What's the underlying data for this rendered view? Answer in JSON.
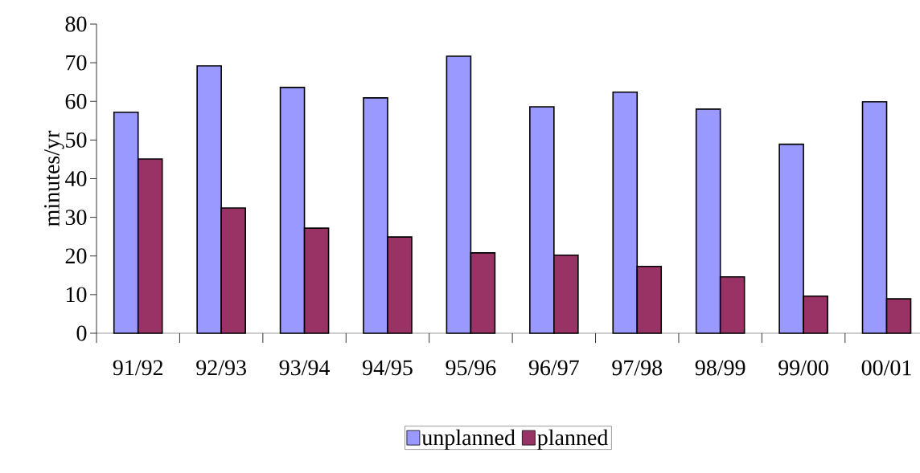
{
  "chart_data": {
    "type": "bar",
    "ylabel": "minutes/yr",
    "categories": [
      "91/92",
      "92/93",
      "93/94",
      "94/95",
      "95/96",
      "96/97",
      "97/98",
      "98/99",
      "99/00",
      "00/01"
    ],
    "series": [
      {
        "name": "unplanned",
        "color": "#9999ff",
        "values": [
          57.2,
          69.2,
          63.6,
          60.9,
          71.7,
          58.6,
          62.4,
          58.0,
          48.9,
          59.9
        ]
      },
      {
        "name": "planned",
        "color": "#993366",
        "values": [
          45.1,
          32.4,
          27.2,
          24.9,
          20.8,
          20.2,
          17.3,
          14.6,
          9.6,
          8.9
        ]
      }
    ],
    "ylim": [
      0,
      80
    ],
    "yticks": [
      0,
      10,
      20,
      30,
      40,
      50,
      60,
      70,
      80
    ],
    "grid": false,
    "legend": "bottom"
  }
}
